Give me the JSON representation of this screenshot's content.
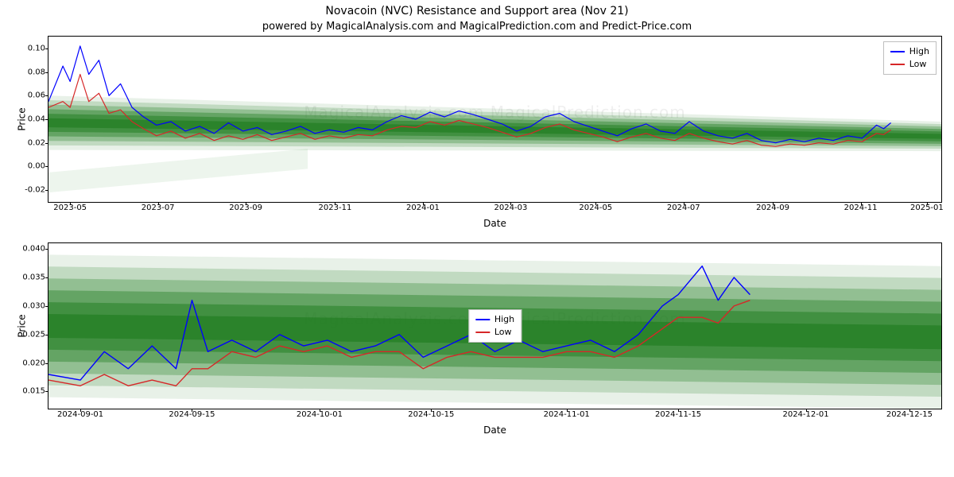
{
  "title": "Novacoin (NVC) Resistance and Support area (Nov 21)",
  "subtitle": "powered by MagicalAnalysis.com and MagicalPrediction.com and Predict-Price.com",
  "watermark_text": "MagicalAnalysis.com   MagicalPrediction.com",
  "axis": {
    "ylabel": "Price",
    "xlabel": "Date"
  },
  "legend": {
    "items": [
      {
        "label": "High",
        "color": "#0000ff"
      },
      {
        "label": "Low",
        "color": "#d62728"
      }
    ],
    "border_color": "#bfbfbf",
    "bg": "#ffffff",
    "fontsize": 11
  },
  "colors": {
    "high_line": "#0000ff",
    "low_line": "#d62728",
    "band_fill": "#1a7a1a",
    "band_fill_light": "#3aa33a",
    "axis": "#000000",
    "background": "#ffffff",
    "watermark": "rgba(120,120,120,0.12)"
  },
  "chart1": {
    "type": "line",
    "title_fontsize": 14,
    "label_fontsize": 12,
    "tick_fontsize": 10,
    "line_width": 1.2,
    "ylim": [
      -0.03,
      0.11
    ],
    "yticks": [
      -0.02,
      0.0,
      0.02,
      0.04,
      0.06,
      0.08,
      0.1
    ],
    "ytick_labels": [
      "-0.02",
      "0.00",
      "0.02",
      "0.04",
      "0.06",
      "0.08",
      "0.10"
    ],
    "xlim": [
      0,
      620
    ],
    "xticks": [
      15,
      76,
      137,
      199,
      260,
      321,
      380,
      441,
      503,
      564,
      610
    ],
    "xtick_labels": [
      "2023-05",
      "2023-07",
      "2023-09",
      "2023-11",
      "2024-01",
      "2024-03",
      "2024-05",
      "2024-07",
      "2024-09",
      "2024-11",
      "2025-01"
    ],
    "band": {
      "top_start": 0.06,
      "top_end": 0.038,
      "bot_start": 0.014,
      "bot_end": 0.013,
      "layers": 6
    },
    "secondary_band": {
      "top_start": -0.005,
      "top_end": 0.015,
      "bot_start": -0.022,
      "bot_end": -0.002,
      "color": "#1a7a1a",
      "opacity": 0.08,
      "x_end": 180
    },
    "high": [
      [
        0,
        0.055
      ],
      [
        10,
        0.085
      ],
      [
        15,
        0.072
      ],
      [
        22,
        0.102
      ],
      [
        28,
        0.078
      ],
      [
        35,
        0.09
      ],
      [
        42,
        0.06
      ],
      [
        50,
        0.07
      ],
      [
        58,
        0.05
      ],
      [
        66,
        0.042
      ],
      [
        75,
        0.035
      ],
      [
        85,
        0.038
      ],
      [
        95,
        0.03
      ],
      [
        105,
        0.034
      ],
      [
        115,
        0.028
      ],
      [
        125,
        0.037
      ],
      [
        135,
        0.03
      ],
      [
        145,
        0.033
      ],
      [
        155,
        0.027
      ],
      [
        165,
        0.03
      ],
      [
        175,
        0.034
      ],
      [
        185,
        0.028
      ],
      [
        195,
        0.031
      ],
      [
        205,
        0.029
      ],
      [
        215,
        0.033
      ],
      [
        225,
        0.031
      ],
      [
        235,
        0.038
      ],
      [
        245,
        0.043
      ],
      [
        255,
        0.04
      ],
      [
        265,
        0.046
      ],
      [
        275,
        0.042
      ],
      [
        285,
        0.047
      ],
      [
        295,
        0.044
      ],
      [
        305,
        0.04
      ],
      [
        315,
        0.036
      ],
      [
        325,
        0.03
      ],
      [
        335,
        0.034
      ],
      [
        345,
        0.042
      ],
      [
        355,
        0.045
      ],
      [
        365,
        0.038
      ],
      [
        375,
        0.034
      ],
      [
        385,
        0.03
      ],
      [
        395,
        0.026
      ],
      [
        405,
        0.032
      ],
      [
        415,
        0.036
      ],
      [
        425,
        0.03
      ],
      [
        435,
        0.028
      ],
      [
        445,
        0.038
      ],
      [
        455,
        0.03
      ],
      [
        465,
        0.026
      ],
      [
        475,
        0.024
      ],
      [
        485,
        0.028
      ],
      [
        495,
        0.022
      ],
      [
        505,
        0.02
      ],
      [
        515,
        0.023
      ],
      [
        525,
        0.021
      ],
      [
        535,
        0.024
      ],
      [
        545,
        0.022
      ],
      [
        555,
        0.026
      ],
      [
        565,
        0.024
      ],
      [
        575,
        0.035
      ],
      [
        580,
        0.032
      ],
      [
        585,
        0.037
      ]
    ],
    "low": [
      [
        0,
        0.05
      ],
      [
        10,
        0.055
      ],
      [
        15,
        0.05
      ],
      [
        22,
        0.078
      ],
      [
        28,
        0.055
      ],
      [
        35,
        0.062
      ],
      [
        42,
        0.045
      ],
      [
        50,
        0.048
      ],
      [
        58,
        0.038
      ],
      [
        66,
        0.032
      ],
      [
        75,
        0.026
      ],
      [
        85,
        0.03
      ],
      [
        95,
        0.024
      ],
      [
        105,
        0.028
      ],
      [
        115,
        0.022
      ],
      [
        125,
        0.026
      ],
      [
        135,
        0.023
      ],
      [
        145,
        0.027
      ],
      [
        155,
        0.022
      ],
      [
        165,
        0.025
      ],
      [
        175,
        0.028
      ],
      [
        185,
        0.023
      ],
      [
        195,
        0.026
      ],
      [
        205,
        0.024
      ],
      [
        215,
        0.027
      ],
      [
        225,
        0.026
      ],
      [
        235,
        0.031
      ],
      [
        245,
        0.034
      ],
      [
        255,
        0.033
      ],
      [
        265,
        0.038
      ],
      [
        275,
        0.035
      ],
      [
        285,
        0.039
      ],
      [
        295,
        0.036
      ],
      [
        305,
        0.033
      ],
      [
        315,
        0.029
      ],
      [
        325,
        0.025
      ],
      [
        335,
        0.028
      ],
      [
        345,
        0.033
      ],
      [
        355,
        0.036
      ],
      [
        365,
        0.031
      ],
      [
        375,
        0.028
      ],
      [
        385,
        0.025
      ],
      [
        395,
        0.021
      ],
      [
        405,
        0.025
      ],
      [
        415,
        0.028
      ],
      [
        425,
        0.024
      ],
      [
        435,
        0.022
      ],
      [
        445,
        0.028
      ],
      [
        455,
        0.024
      ],
      [
        465,
        0.021
      ],
      [
        475,
        0.019
      ],
      [
        485,
        0.022
      ],
      [
        495,
        0.018
      ],
      [
        505,
        0.017
      ],
      [
        515,
        0.019
      ],
      [
        525,
        0.018
      ],
      [
        535,
        0.02
      ],
      [
        545,
        0.019
      ],
      [
        555,
        0.022
      ],
      [
        565,
        0.021
      ],
      [
        575,
        0.028
      ],
      [
        580,
        0.027
      ],
      [
        585,
        0.031
      ]
    ]
  },
  "chart2": {
    "type": "line",
    "label_fontsize": 12,
    "tick_fontsize": 10,
    "line_width": 1.4,
    "legend_pos": "center",
    "ylim": [
      0.012,
      0.041
    ],
    "yticks": [
      0.015,
      0.02,
      0.025,
      0.03,
      0.035,
      0.04
    ],
    "ytick_labels": [
      "0.015",
      "0.020",
      "0.025",
      "0.030",
      "0.035",
      "0.040"
    ],
    "xlim": [
      0,
      112
    ],
    "xticks": [
      4,
      18,
      34,
      48,
      65,
      79,
      95,
      108
    ],
    "xtick_labels": [
      "2024-09-01",
      "2024-09-15",
      "2024-10-01",
      "2024-10-15",
      "2024-11-01",
      "2024-11-15",
      "2024-12-01",
      "2024-12-15"
    ],
    "band": {
      "top_start": 0.039,
      "top_end": 0.037,
      "bot_start": 0.014,
      "bot_end": 0.012,
      "layers": 6
    },
    "high": [
      [
        0,
        0.018
      ],
      [
        4,
        0.017
      ],
      [
        7,
        0.022
      ],
      [
        10,
        0.019
      ],
      [
        13,
        0.023
      ],
      [
        16,
        0.019
      ],
      [
        18,
        0.031
      ],
      [
        20,
        0.022
      ],
      [
        23,
        0.024
      ],
      [
        26,
        0.022
      ],
      [
        29,
        0.025
      ],
      [
        32,
        0.023
      ],
      [
        35,
        0.024
      ],
      [
        38,
        0.022
      ],
      [
        41,
        0.023
      ],
      [
        44,
        0.025
      ],
      [
        47,
        0.021
      ],
      [
        50,
        0.023
      ],
      [
        53,
        0.025
      ],
      [
        56,
        0.022
      ],
      [
        59,
        0.024
      ],
      [
        62,
        0.022
      ],
      [
        65,
        0.023
      ],
      [
        68,
        0.024
      ],
      [
        71,
        0.022
      ],
      [
        74,
        0.025
      ],
      [
        77,
        0.03
      ],
      [
        79,
        0.032
      ],
      [
        82,
        0.037
      ],
      [
        84,
        0.031
      ],
      [
        86,
        0.035
      ],
      [
        88,
        0.032
      ]
    ],
    "low": [
      [
        0,
        0.017
      ],
      [
        4,
        0.016
      ],
      [
        7,
        0.018
      ],
      [
        10,
        0.016
      ],
      [
        13,
        0.017
      ],
      [
        16,
        0.016
      ],
      [
        18,
        0.019
      ],
      [
        20,
        0.019
      ],
      [
        23,
        0.022
      ],
      [
        26,
        0.021
      ],
      [
        29,
        0.023
      ],
      [
        32,
        0.022
      ],
      [
        35,
        0.023
      ],
      [
        38,
        0.021
      ],
      [
        41,
        0.022
      ],
      [
        44,
        0.022
      ],
      [
        47,
        0.019
      ],
      [
        50,
        0.021
      ],
      [
        53,
        0.022
      ],
      [
        56,
        0.021
      ],
      [
        59,
        0.021
      ],
      [
        62,
        0.021
      ],
      [
        65,
        0.022
      ],
      [
        68,
        0.022
      ],
      [
        71,
        0.021
      ],
      [
        74,
        0.023
      ],
      [
        77,
        0.026
      ],
      [
        79,
        0.028
      ],
      [
        82,
        0.028
      ],
      [
        84,
        0.027
      ],
      [
        86,
        0.03
      ],
      [
        88,
        0.031
      ]
    ]
  }
}
